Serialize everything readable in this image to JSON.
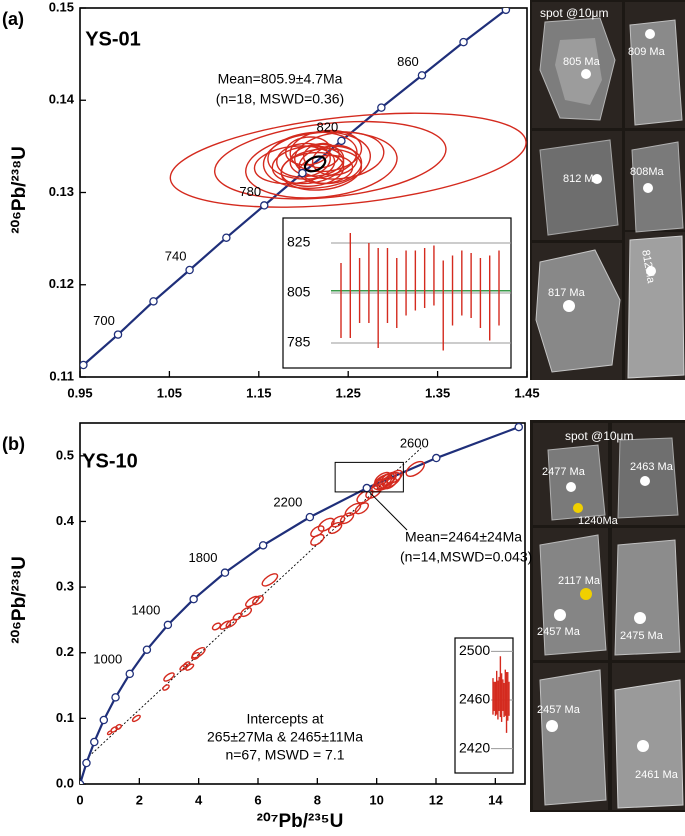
{
  "chart_data": [
    {
      "type": "concordia",
      "panel_label": "(a)",
      "title": "YS-01",
      "ylabel": "²⁰⁶Pb/²³⁸U",
      "xlim": [
        0.95,
        1.45
      ],
      "xticks": [
        0.95,
        1.05,
        1.15,
        1.25,
        1.35,
        1.45
      ],
      "ylim": [
        0.11,
        0.15
      ],
      "yticks": [
        0.11,
        0.12,
        0.13,
        0.14,
        0.15
      ],
      "concordia": {
        "color": "#1f2f7a",
        "ages": [
          680,
          700,
          720,
          740,
          760,
          780,
          800,
          820,
          840,
          860,
          880,
          900
        ],
        "x": [
          0.9538,
          0.9925,
          1.0322,
          1.0726,
          1.1137,
          1.1561,
          1.1988,
          1.2424,
          1.2871,
          1.3325,
          1.379,
          1.4264
        ],
        "y": [
          0.1113,
          0.1146,
          0.1182,
          0.1216,
          0.1251,
          0.1286,
          0.1321,
          0.1356,
          0.1392,
          0.1427,
          0.1463,
          0.1498
        ],
        "labeled_ages": [
          700,
          740,
          780,
          820,
          860
        ]
      },
      "ellipses": {
        "color": "#d42a1e",
        "x": [
          1.25,
          1.23,
          1.22,
          1.215,
          1.21,
          1.22,
          1.205,
          1.225,
          1.21,
          1.215,
          1.23,
          1.2,
          1.225,
          1.235,
          1.205,
          1.22,
          1.24,
          1.19
        ],
        "y": [
          0.1335,
          0.1335,
          0.133,
          0.1335,
          0.134,
          0.1325,
          0.133,
          0.1345,
          0.1325,
          0.1335,
          0.133,
          0.1335,
          0.1325,
          0.1335,
          0.1345,
          0.134,
          0.134,
          0.133
        ],
        "x_err": [
          0.2,
          0.13,
          0.085,
          0.06,
          0.05,
          0.045,
          0.04,
          0.04,
          0.035,
          0.03,
          0.035,
          0.03,
          0.03,
          0.025,
          0.025,
          0.02,
          0.05,
          0.045
        ],
        "y_err": [
          0.0047,
          0.004,
          0.0035,
          0.003,
          0.0025,
          0.0022,
          0.002,
          0.0022,
          0.0018,
          0.0017,
          0.002,
          0.0018,
          0.0015,
          0.0016,
          0.0015,
          0.0013,
          0.0025,
          0.002
        ]
      },
      "mean_ellipse": {
        "color": "#000000",
        "x": 1.213,
        "y": 0.1331,
        "x_err": 0.012,
        "y_err": 0.0007
      },
      "annotations": [
        "Mean=805.9±4.7Ma",
        "(n=18, MSWD=0.36)"
      ]
    },
    {
      "type": "errorbar",
      "ylim": [
        775,
        835
      ],
      "yticks": [
        785,
        805,
        825
      ],
      "color": "#d42a1e",
      "values": [
        802,
        808,
        806,
        809,
        803,
        808,
        805,
        809,
        810,
        811,
        812,
        800,
        806,
        809,
        808,
        805,
        803,
        807
      ],
      "errors": [
        15,
        21,
        13,
        16,
        20,
        15,
        14,
        13,
        12,
        12,
        12,
        18,
        14,
        13,
        13,
        14,
        17,
        15
      ],
      "mean": 805.9,
      "mean_color": "#3a9a4a"
    },
    {
      "type": "concordia",
      "panel_label": "(b)",
      "title": "YS-10",
      "ylabel": "²⁰⁶Pb/²³⁸U",
      "xlabel": "²⁰⁷Pb/²³⁵U",
      "xlim": [
        0,
        15
      ],
      "xticks": [
        0,
        2,
        4,
        6,
        8,
        10,
        12,
        14
      ],
      "ylim": [
        0,
        0.55
      ],
      "yticks": [
        {
          "value": 0,
          "label": "0.0"
        },
        0.1,
        0.2,
        0.3,
        0.4,
        0.5
      ],
      "concordia": {
        "color": "#1f2f7a",
        "ages": [
          0,
          200,
          400,
          600,
          800,
          1000,
          1200,
          1400,
          1600,
          1800,
          2000,
          2200,
          2400,
          2600,
          2800
        ],
        "x": [
          0,
          0.2177,
          0.4817,
          0.8025,
          1.198,
          1.677,
          2.255,
          2.962,
          3.831,
          4.887,
          6.173,
          7.748,
          9.668,
          12.01,
          14.79
        ],
        "y": [
          0,
          0.032,
          0.064,
          0.0975,
          0.132,
          0.1678,
          0.2046,
          0.2424,
          0.2816,
          0.322,
          0.3636,
          0.4066,
          0.4509,
          0.4966,
          0.5438
        ],
        "labeled_ages": [
          1000,
          1400,
          1800,
          2200,
          2600
        ]
      },
      "discordia": {
        "color": "#000000",
        "x": [
          0.3,
          11.5
        ],
        "y": [
          0.042,
          0.512
        ]
      },
      "ellipses": {
        "color": "#d42a1e",
        "x": [
          1.15,
          1.3,
          1.0,
          1.9,
          2.9,
          3.0,
          3.5,
          3.7,
          3.6,
          4.0,
          3.9,
          4.6,
          4.9,
          5.1,
          5.3,
          5.6,
          5.8,
          6.0,
          6.4,
          8.0,
          8.0,
          8.3,
          8.6,
          8.7,
          9.0,
          9.2,
          9.5,
          9.6,
          9.9,
          10.1,
          10.2,
          10.3,
          10.4,
          10.5,
          10.3,
          10.6,
          10.2,
          10.45,
          11.3
        ],
        "y": [
          0.083,
          0.087,
          0.078,
          0.1,
          0.147,
          0.163,
          0.178,
          0.178,
          0.182,
          0.2,
          0.195,
          0.24,
          0.242,
          0.245,
          0.255,
          0.262,
          0.278,
          0.28,
          0.311,
          0.372,
          0.385,
          0.395,
          0.39,
          0.4,
          0.405,
          0.418,
          0.42,
          0.438,
          0.445,
          0.455,
          0.46,
          0.462,
          0.465,
          0.463,
          0.458,
          0.468,
          0.465,
          0.458,
          0.48
        ],
        "x_err": [
          0.12,
          0.1,
          0.08,
          0.15,
          0.12,
          0.2,
          0.15,
          0.15,
          0.12,
          0.25,
          0.15,
          0.15,
          0.2,
          0.2,
          0.15,
          0.2,
          0.25,
          0.2,
          0.3,
          0.25,
          0.25,
          0.3,
          0.25,
          0.25,
          0.25,
          0.3,
          0.25,
          0.3,
          0.3,
          0.3,
          0.35,
          0.35,
          0.3,
          0.35,
          0.3,
          0.3,
          0.3,
          0.25,
          0.35
        ],
        "y_err": [
          0.003,
          0.003,
          0.002,
          0.003,
          0.003,
          0.004,
          0.003,
          0.003,
          0.003,
          0.005,
          0.004,
          0.004,
          0.004,
          0.004,
          0.004,
          0.005,
          0.005,
          0.005,
          0.006,
          0.006,
          0.006,
          0.007,
          0.006,
          0.006,
          0.006,
          0.006,
          0.006,
          0.007,
          0.007,
          0.007,
          0.008,
          0.008,
          0.007,
          0.008,
          0.007,
          0.007,
          0.007,
          0.006,
          0.008
        ]
      },
      "zoom_box": {
        "x": [
          8.6,
          10.9
        ],
        "y": [
          0.445,
          0.49
        ]
      },
      "annotations": [
        "Mean=2464±24Ma",
        "(n=14,MSWD=0.043)",
        "Intercepts at",
        "265±27Ma & 2465±11Ma",
        "n=67, MSWD = 7.1"
      ]
    },
    {
      "type": "errorbar",
      "ylim": [
        2400,
        2511
      ],
      "yticks": [
        2420,
        2460,
        2500
      ],
      "color": "#d42a1e",
      "values": [
        2463,
        2463,
        2461,
        2466,
        2460,
        2465,
        2471,
        2462,
        2464,
        2460,
        2466,
        2458,
        2463,
        2461
      ],
      "errors": [
        15,
        12,
        14,
        18,
        16,
        14,
        25,
        20,
        13,
        14,
        19,
        25,
        20,
        14
      ]
    }
  ],
  "cl_images": [
    {
      "caption": "spot @10μm",
      "spots": [
        "805 Ma",
        "809 Ma",
        "812 Ma",
        "808Ma",
        "817 Ma",
        "812Ma"
      ]
    },
    {
      "caption": "spot @10μm",
      "spots": [
        "2477 Ma",
        "1240Ma",
        "2463 Ma",
        "2117 Ma",
        "2457 Ma",
        "2475 Ma",
        "2457 Ma",
        "2461 Ma"
      ]
    }
  ]
}
